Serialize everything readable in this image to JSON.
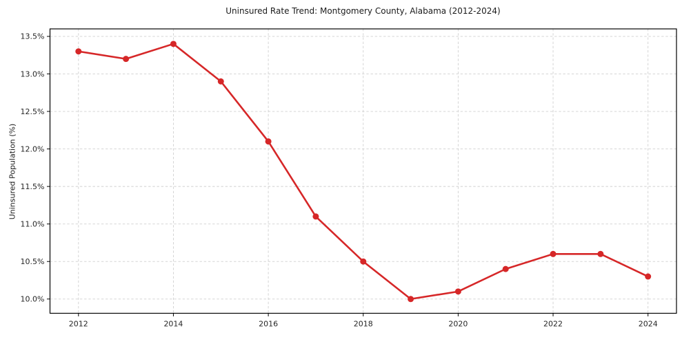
{
  "figure": {
    "background": "#ffffff"
  },
  "chart_data": {
    "type": "line",
    "title": "Uninsured Rate Trend: Montgomery County, Alabama (2012-2024)",
    "xlabel": "",
    "ylabel": "Uninsured Population (%)",
    "x": [
      2012,
      2013,
      2014,
      2015,
      2016,
      2017,
      2018,
      2019,
      2020,
      2021,
      2022,
      2023,
      2024
    ],
    "series": [
      {
        "name": "Uninsured Rate",
        "values": [
          13.3,
          13.2,
          13.4,
          12.9,
          12.1,
          11.1,
          10.5,
          10.0,
          10.1,
          10.4,
          10.6,
          10.6,
          10.3
        ]
      }
    ],
    "xlim": [
      2011.4,
      2024.6
    ],
    "ylim": [
      9.81,
      13.6
    ],
    "x_ticks": [
      2012,
      2014,
      2016,
      2018,
      2020,
      2022,
      2024
    ],
    "x_tick_labels": [
      "2012",
      "2014",
      "2016",
      "2018",
      "2020",
      "2022",
      "2024"
    ],
    "y_ticks": [
      10.0,
      10.5,
      11.0,
      11.5,
      12.0,
      12.5,
      13.0,
      13.5
    ],
    "y_tick_labels": [
      "10.0%",
      "10.5%",
      "11.0%",
      "11.5%",
      "12.0%",
      "12.5%",
      "13.0%",
      "13.5%"
    ],
    "grid": true,
    "grid_style": "dashed",
    "legend": "none",
    "line_color": "#d62728",
    "marker": "circle",
    "grid_color": "#cfcfcf",
    "axis_color": "#000000",
    "tick_text_color": "#262626"
  }
}
